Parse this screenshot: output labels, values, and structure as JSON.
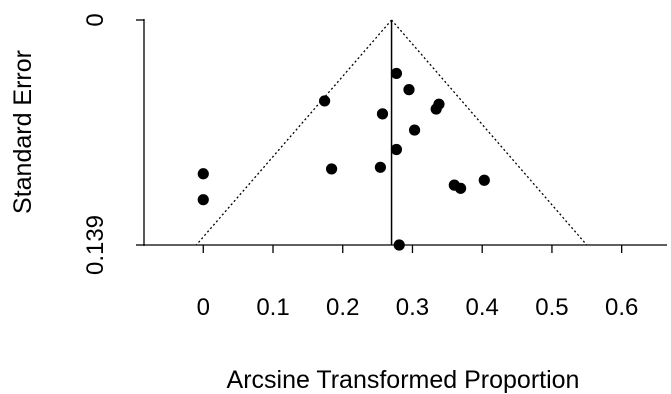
{
  "chart_data": {
    "type": "scatter",
    "title": "",
    "xlabel": "Arcsine Transformed Proportion",
    "ylabel": "Standard Error",
    "x_ticks": [
      0,
      0.1,
      0.2,
      0.3,
      0.4,
      0.5,
      0.6
    ],
    "x_tick_labels": [
      "0",
      "0.1",
      "0.2",
      "0.3",
      "0.4",
      "0.5",
      "0.6"
    ],
    "xlim": [
      -0.085,
      0.665
    ],
    "y_ticks": [
      0,
      0.139
    ],
    "y_tick_labels": [
      "0",
      "0.139"
    ],
    "ylim": [
      0,
      0.139
    ],
    "y_reversed": true,
    "summary_estimate": 0.27,
    "funnel_apex": {
      "x": 0.27,
      "se": 0
    },
    "funnel_base": {
      "left_x": -0.01,
      "right_x": 0.55,
      "se": 0.139
    },
    "point_color": "#000000",
    "points": [
      {
        "x": 0.0,
        "se": 0.095
      },
      {
        "x": 0.0,
        "se": 0.111
      },
      {
        "x": 0.174,
        "se": 0.05
      },
      {
        "x": 0.184,
        "se": 0.092
      },
      {
        "x": 0.254,
        "se": 0.091
      },
      {
        "x": 0.257,
        "se": 0.058
      },
      {
        "x": 0.277,
        "se": 0.033
      },
      {
        "x": 0.277,
        "se": 0.08
      },
      {
        "x": 0.281,
        "se": 0.139
      },
      {
        "x": 0.295,
        "se": 0.043
      },
      {
        "x": 0.303,
        "se": 0.068
      },
      {
        "x": 0.334,
        "se": 0.055
      },
      {
        "x": 0.338,
        "se": 0.052
      },
      {
        "x": 0.36,
        "se": 0.102
      },
      {
        "x": 0.369,
        "se": 0.104
      },
      {
        "x": 0.403,
        "se": 0.099
      }
    ]
  }
}
